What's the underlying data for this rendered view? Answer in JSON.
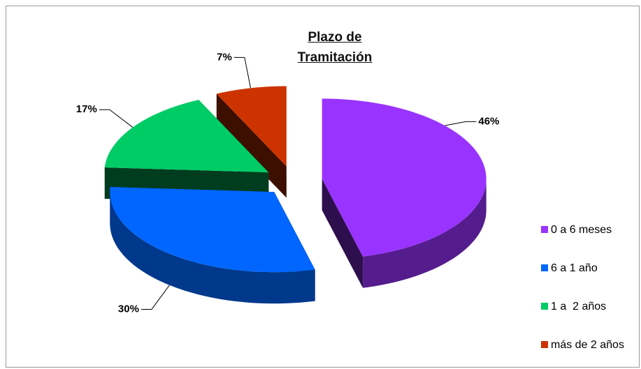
{
  "chart_data": {
    "type": "pie",
    "title": "Plazo de Tramitación",
    "categories": [
      "0 a 6 meses",
      "6 a 1 año",
      "1 a  2 años",
      "más de 2 años"
    ],
    "values": [
      46,
      30,
      17,
      7
    ],
    "value_labels": [
      "46%",
      "30%",
      "17%",
      "7%"
    ],
    "colors": [
      "#9933ff",
      "#0066ff",
      "#00cc66",
      "#cc3300"
    ],
    "legend": "right"
  }
}
